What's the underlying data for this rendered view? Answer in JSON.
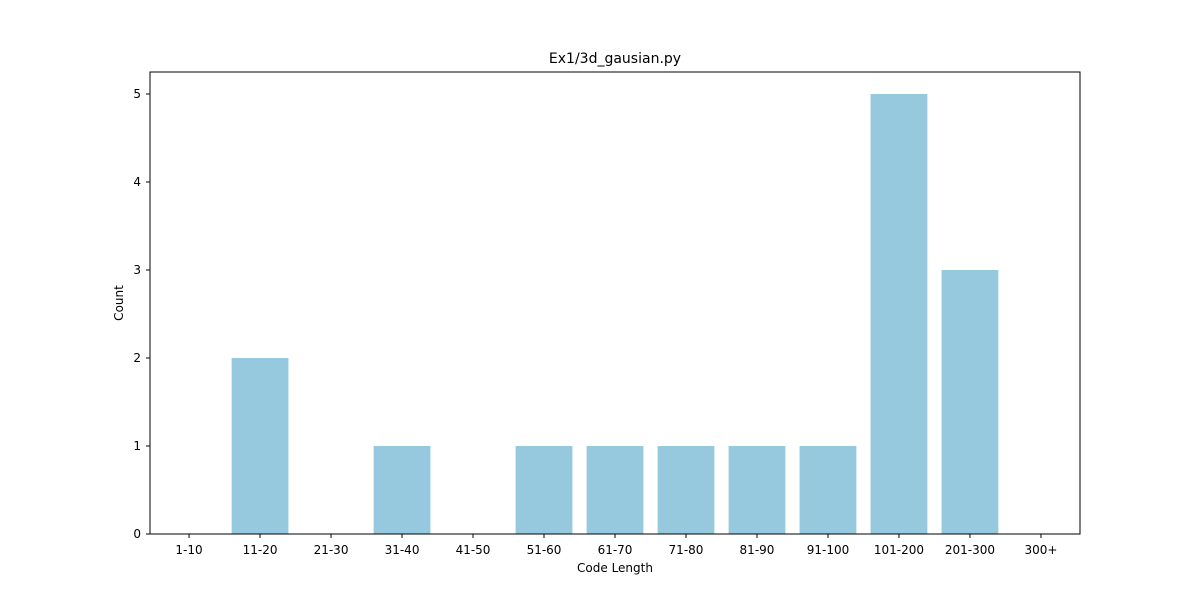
{
  "chart_data": {
    "type": "bar",
    "title": "Ex1/3d_gausian.py",
    "xlabel": "Code Length",
    "ylabel": "Count",
    "categories": [
      "1-10",
      "11-20",
      "21-30",
      "31-40",
      "41-50",
      "51-60",
      "61-70",
      "71-80",
      "81-90",
      "91-100",
      "101-200",
      "201-300",
      "300+"
    ],
    "values": [
      0,
      2,
      0,
      1,
      0,
      1,
      1,
      1,
      1,
      1,
      5,
      3,
      0
    ],
    "ylim": [
      0,
      5.25
    ],
    "yticks": [
      0,
      1,
      2,
      3,
      4,
      5
    ],
    "bar_color": "#96c9dd",
    "grid": false,
    "legend": false
  }
}
